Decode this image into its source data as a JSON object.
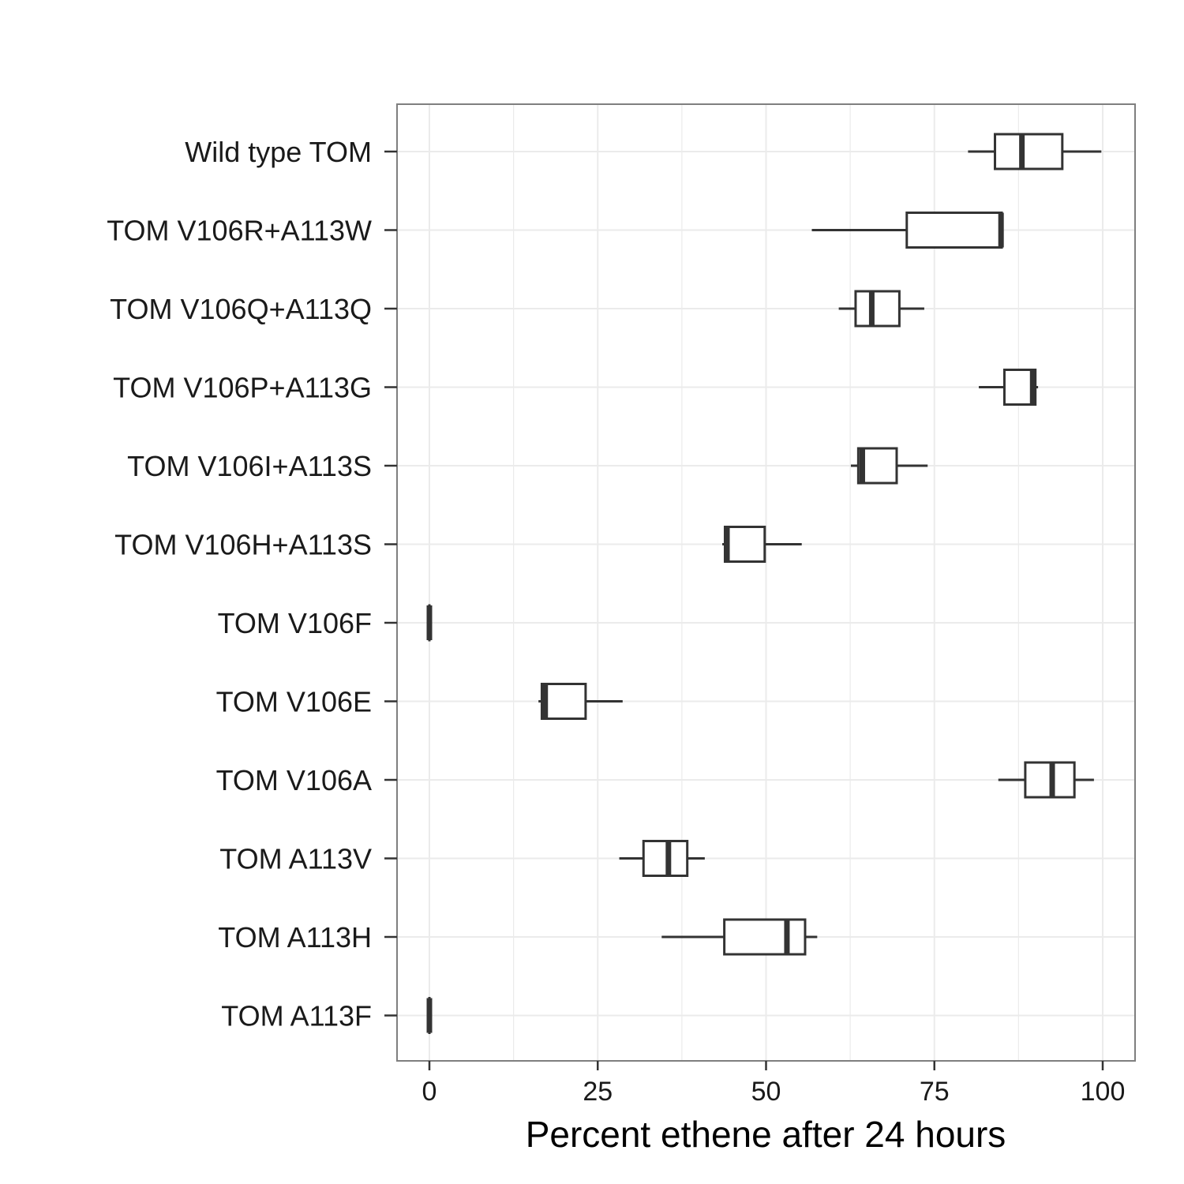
{
  "chart_data": {
    "type": "boxplot",
    "orientation": "horizontal",
    "title": "",
    "xlabel": "Percent ethene after 24 hours",
    "ylabel": "",
    "xlim": [
      -2.5,
      102.5
    ],
    "xticks": [
      0,
      25,
      50,
      75,
      100
    ],
    "grid": true,
    "legend": "none",
    "colors": {
      "box_stroke": "#333333",
      "box_fill": "#ffffff",
      "grid": "#ebebeb",
      "panel_border": "#7f7f7f"
    },
    "categories": [
      "Wild type TOM",
      "TOM V106R+A113W",
      "TOM V106Q+A113Q",
      "TOM V106P+A113G",
      "TOM V106I+A113S",
      "TOM V106H+A113S",
      "TOM V106F",
      "TOM V106E",
      "TOM V106A",
      "TOM A113V",
      "TOM A113H",
      "TOM A113F"
    ],
    "boxes": [
      {
        "min": 80.0,
        "q1": 84.0,
        "median": 88.0,
        "q3": 94.0,
        "max": 99.8
      },
      {
        "min": 56.8,
        "q1": 70.9,
        "median": 84.9,
        "q3": 85.0,
        "max": 85.0
      },
      {
        "min": 60.8,
        "q1": 63.3,
        "median": 65.7,
        "q3": 69.8,
        "max": 73.5
      },
      {
        "min": 81.6,
        "q1": 85.4,
        "median": 89.6,
        "q3": 90.0,
        "max": 90.4
      },
      {
        "min": 62.6,
        "q1": 63.7,
        "median": 64.3,
        "q3": 69.4,
        "max": 74.0
      },
      {
        "min": 43.5,
        "q1": 43.9,
        "median": 44.2,
        "q3": 49.8,
        "max": 55.3
      },
      {
        "min": 0.0,
        "q1": 0.0,
        "median": 0.0,
        "q3": 0.0,
        "max": 0.0
      },
      {
        "min": 16.2,
        "q1": 16.7,
        "median": 17.2,
        "q3": 23.2,
        "max": 28.7
      },
      {
        "min": 84.5,
        "q1": 88.5,
        "median": 92.5,
        "q3": 95.8,
        "max": 98.7
      },
      {
        "min": 28.2,
        "q1": 31.8,
        "median": 35.5,
        "q3": 38.3,
        "max": 40.9
      },
      {
        "min": 34.5,
        "q1": 43.8,
        "median": 53.1,
        "q3": 55.8,
        "max": 57.6
      },
      {
        "min": 0.0,
        "q1": 0.0,
        "median": 0.0,
        "q3": 0.0,
        "max": 0.0
      }
    ]
  }
}
